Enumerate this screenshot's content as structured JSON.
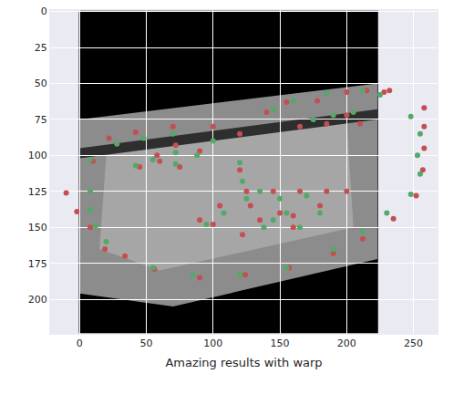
{
  "chart_data": {
    "type": "scatter",
    "xlabel": "Amazing results with warp",
    "xlim": [
      -22,
      268
    ],
    "ylim": [
      224,
      -1
    ],
    "xticks": [
      0,
      50,
      100,
      150,
      200,
      250
    ],
    "yticks": [
      0,
      25,
      50,
      75,
      100,
      125,
      150,
      175,
      200
    ],
    "grid": true,
    "marker": "circle",
    "series": [
      {
        "color": "#c44e52",
        "x": [
          -10,
          -2,
          8,
          19,
          34,
          56,
          90,
          124,
          157,
          190,
          212,
          235,
          252,
          257,
          258,
          258,
          258,
          232,
          10,
          22,
          42,
          70,
          100,
          120,
          155,
          178,
          200,
          215,
          228,
          140,
          165,
          185,
          200,
          210,
          45,
          58,
          72,
          90,
          75,
          60,
          120,
          125,
          128,
          122,
          135,
          150,
          160,
          145,
          165,
          185,
          200,
          180,
          160,
          90,
          105,
          100
        ],
        "y": [
          126,
          139,
          150,
          165,
          170,
          179,
          185,
          183,
          178,
          168,
          158,
          144,
          128,
          110,
          95,
          80,
          67,
          55,
          104,
          88,
          84,
          80,
          80,
          85,
          63,
          62,
          56,
          55,
          56,
          70,
          80,
          78,
          72,
          78,
          108,
          100,
          93,
          97,
          108,
          104,
          110,
          125,
          135,
          155,
          145,
          140,
          142,
          125,
          125,
          125,
          125,
          135,
          150,
          145,
          135,
          148
        ]
      },
      {
        "color": "#55a868",
        "x": [
          8,
          8,
          12,
          20,
          55,
          85,
          120,
          155,
          190,
          212,
          230,
          248,
          255,
          253,
          255,
          248,
          225,
          8,
          28,
          48,
          70,
          100,
          160,
          185,
          212,
          145,
          175,
          190,
          205,
          42,
          55,
          72,
          88,
          72,
          120,
          122,
          125,
          138,
          145,
          155,
          135,
          150,
          170,
          180,
          165,
          95,
          108
        ],
        "y": [
          125,
          138,
          149,
          160,
          178,
          183,
          183,
          178,
          165,
          153,
          140,
          127,
          113,
          100,
          85,
          73,
          58,
          103,
          92,
          88,
          85,
          90,
          62,
          57,
          55,
          68,
          75,
          72,
          70,
          107,
          103,
          98,
          100,
          106,
          105,
          118,
          130,
          150,
          145,
          140,
          125,
          130,
          128,
          140,
          150,
          148,
          140
        ]
      }
    ]
  }
}
